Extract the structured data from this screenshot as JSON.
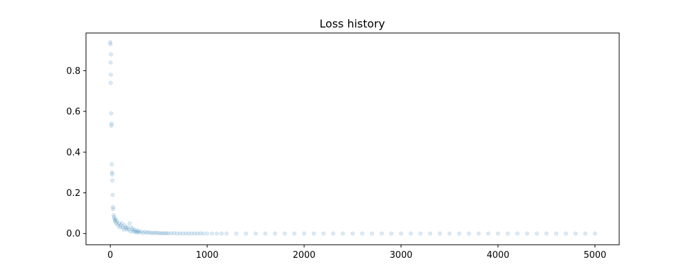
{
  "chart_data": {
    "type": "scatter",
    "title": "Loss history",
    "xlabel": "",
    "ylabel": "",
    "xlim": [
      -250,
      5250
    ],
    "ylim": [
      -0.055,
      0.985
    ],
    "x_ticks": [
      0,
      1000,
      2000,
      3000,
      4000,
      5000
    ],
    "y_ticks": [
      0.0,
      0.2,
      0.4,
      0.6,
      0.8
    ],
    "y_tick_labels": [
      "0.0",
      "0.2",
      "0.4",
      "0.6",
      "0.8"
    ],
    "grid": false,
    "legend": "none",
    "marker_color": "#1f77b4",
    "marker_alpha": 0.15,
    "series": [
      {
        "x": [
          0,
          2,
          4,
          5,
          6,
          8,
          10,
          12,
          14,
          16,
          18,
          20,
          22,
          25,
          28,
          30,
          35,
          40,
          45,
          50,
          55,
          60,
          70,
          80,
          90,
          100,
          110,
          120,
          130,
          140,
          150,
          160,
          170,
          180,
          190,
          200,
          210,
          220,
          230,
          240,
          250,
          260,
          270,
          280,
          290,
          300,
          320,
          340,
          360,
          380,
          400,
          420,
          440,
          460,
          480,
          500,
          520,
          540,
          560,
          580,
          600,
          630,
          660,
          690,
          720,
          750,
          780,
          810,
          840,
          870,
          900,
          930,
          960,
          1000,
          1050,
          1100,
          1150,
          1200,
          1300,
          1400,
          1500,
          1600,
          1700,
          1800,
          1900,
          2000,
          2100,
          2200,
          2300,
          2400,
          2500,
          2600,
          2700,
          2800,
          2900,
          3000,
          3100,
          3200,
          3300,
          3400,
          3500,
          3600,
          3700,
          3800,
          3900,
          4000,
          4100,
          4200,
          4300,
          4400,
          4500,
          4600,
          4700,
          4800,
          4900,
          5000
        ],
        "y": [
          0.94,
          0.93,
          0.84,
          0.74,
          0.78,
          0.88,
          0.59,
          0.53,
          0.54,
          0.34,
          0.3,
          0.29,
          0.26,
          0.19,
          0.13,
          0.12,
          0.09,
          0.08,
          0.07,
          0.06,
          0.07,
          0.05,
          0.06,
          0.04,
          0.05,
          0.03,
          0.04,
          0.05,
          0.03,
          0.02,
          0.04,
          0.03,
          0.02,
          0.03,
          0.02,
          0.05,
          0.01,
          0.03,
          0.02,
          0.01,
          0.02,
          0.01,
          0.005,
          0.015,
          0.01,
          0.005,
          0.01,
          0.003,
          0.008,
          0.004,
          0.006,
          0.003,
          0.002,
          0.005,
          0.002,
          0.003,
          0.001,
          0.002,
          0.001,
          0.002,
          0.001,
          0.001,
          0.002,
          0.0,
          0.001,
          0.0,
          0.001,
          0.0,
          0.0,
          0.001,
          0.0,
          0.001,
          0.0,
          0.0,
          0.0,
          0.0,
          0.0,
          0.0,
          0.0,
          0.0,
          0.0,
          0.0,
          0.0,
          0.0,
          0.0,
          0.0,
          0.0,
          0.0,
          0.0,
          0.0,
          0.0,
          0.0,
          0.0,
          0.0,
          0.0,
          0.0,
          0.0,
          0.0,
          0.0,
          0.0,
          0.0,
          0.0,
          0.0,
          0.0,
          0.0,
          0.0,
          0.0,
          0.0,
          0.0,
          0.0,
          0.0,
          0.0,
          0.0,
          0.0,
          0.0,
          0.0
        ]
      }
    ]
  }
}
